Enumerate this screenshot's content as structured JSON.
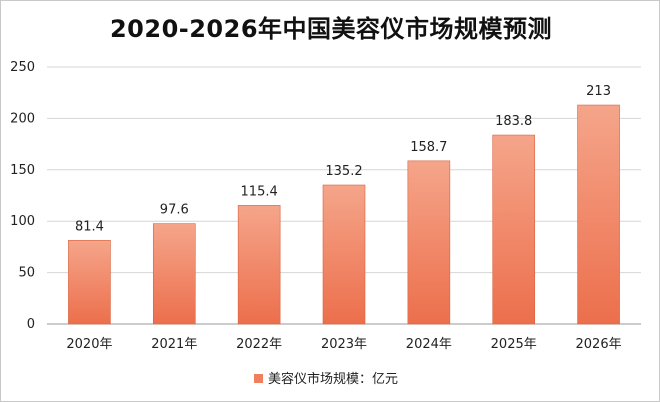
{
  "chart_data": {
    "type": "bar",
    "title": "2020-2026年中国美容仪市场规模预测",
    "xlabel": "",
    "ylabel": "",
    "categories": [
      "2020年",
      "2021年",
      "2022年",
      "2023年",
      "2024年",
      "2025年",
      "2026年"
    ],
    "series": [
      {
        "name": "美容仪市场规模：亿元",
        "values": [
          81.4,
          97.6,
          115.4,
          135.2,
          158.7,
          183.8,
          213
        ],
        "value_labels": [
          "81.4",
          "97.6",
          "115.4",
          "135.2",
          "158.7",
          "183.8",
          "213"
        ],
        "color": "#f07f5e"
      }
    ],
    "ylim": [
      0,
      250
    ],
    "yticks": [
      0,
      50,
      100,
      150,
      200,
      250
    ],
    "grid": true,
    "legend_position": "bottom"
  },
  "colors": {
    "bar_top": "#f5a58a",
    "bar_bottom": "#ec6f4c",
    "bar_edge": "#d9623f",
    "gridline": "#d6d6d6",
    "axis": "#9a9a9a"
  }
}
